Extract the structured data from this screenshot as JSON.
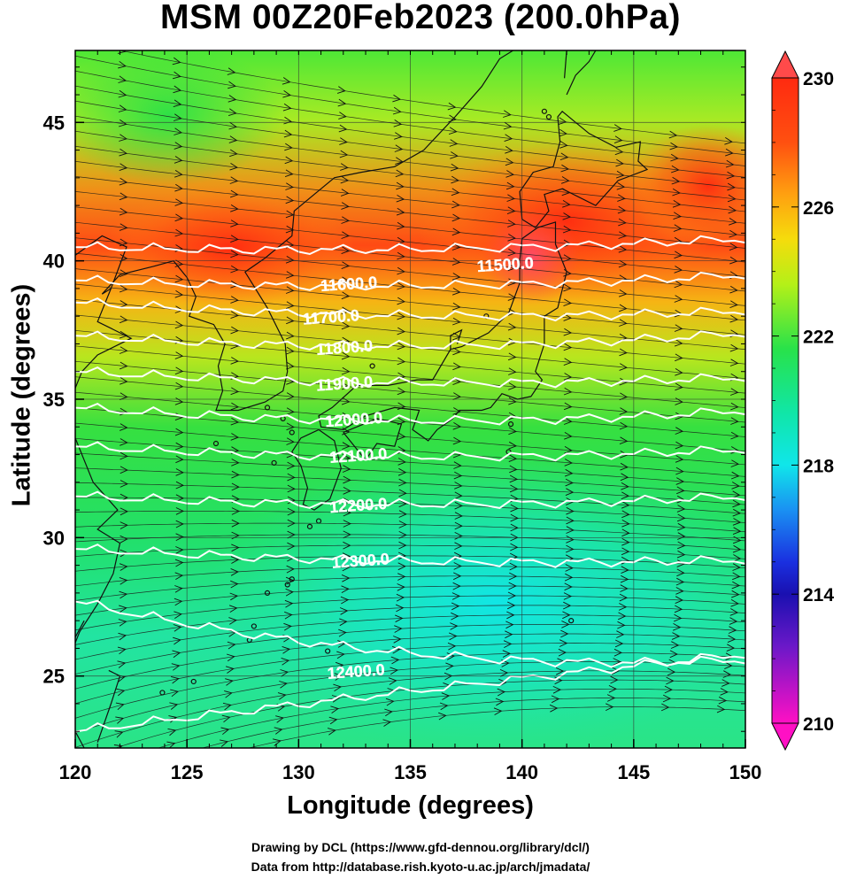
{
  "title": "MSM 00Z20Feb2023 (200.0hPa)",
  "xlabel": "Longitude (degrees)",
  "ylabel": "Latitude  (degrees)",
  "credits": [
    "Drawing by DCL (https://www.gfd-dennou.org/library/dcl/)",
    "Data from http://database.rish.kyoto-u.ac.jp/arch/jmadata/"
  ],
  "map": {
    "lon_range": [
      120,
      150
    ],
    "lat_range": [
      22.4,
      47.6
    ],
    "lon_ticks": [
      "120",
      "125",
      "130",
      "135",
      "140",
      "145",
      "150"
    ],
    "lat_ticks": [
      "25",
      "30",
      "35",
      "40",
      "45"
    ],
    "grid": true,
    "field": "temperature shaded",
    "overlays": [
      "wind vectors",
      "geopotential height contours",
      "coastlines"
    ]
  },
  "colorbar": {
    "min": 210,
    "max": 230,
    "tick_labels": [
      "230",
      "226",
      "222",
      "218",
      "214",
      "210"
    ],
    "colors": {
      "230": "#ff2a10",
      "228": "#ff6a10",
      "226": "#f5d40c",
      "224": "#9cf02a",
      "222": "#28e24a",
      "220": "#10e6b0",
      "218": "#10e6ea",
      "216": "#1a88f0",
      "214": "#1a24d6",
      "212": "#6618c8",
      "210": "#ff10c4"
    }
  },
  "contours": [
    {
      "label": "11500.0",
      "lon": 138.0,
      "lat": 39.6
    },
    {
      "label": "11600.0",
      "lon": 131.0,
      "lat": 38.9
    },
    {
      "label": "11700.0",
      "lon": 130.2,
      "lat": 37.7
    },
    {
      "label": "11800.0",
      "lon": 130.8,
      "lat": 36.6
    },
    {
      "label": "11900.0",
      "lon": 130.8,
      "lat": 35.3
    },
    {
      "label": "12000.0",
      "lon": 131.2,
      "lat": 34.0
    },
    {
      "label": "12100.0",
      "lon": 131.4,
      "lat": 32.7
    },
    {
      "label": "12200.0",
      "lon": 131.4,
      "lat": 30.9
    },
    {
      "label": "12300.0",
      "lon": 131.5,
      "lat": 28.9
    },
    {
      "label": "12400.0",
      "lon": 131.3,
      "lat": 24.9
    }
  ]
}
